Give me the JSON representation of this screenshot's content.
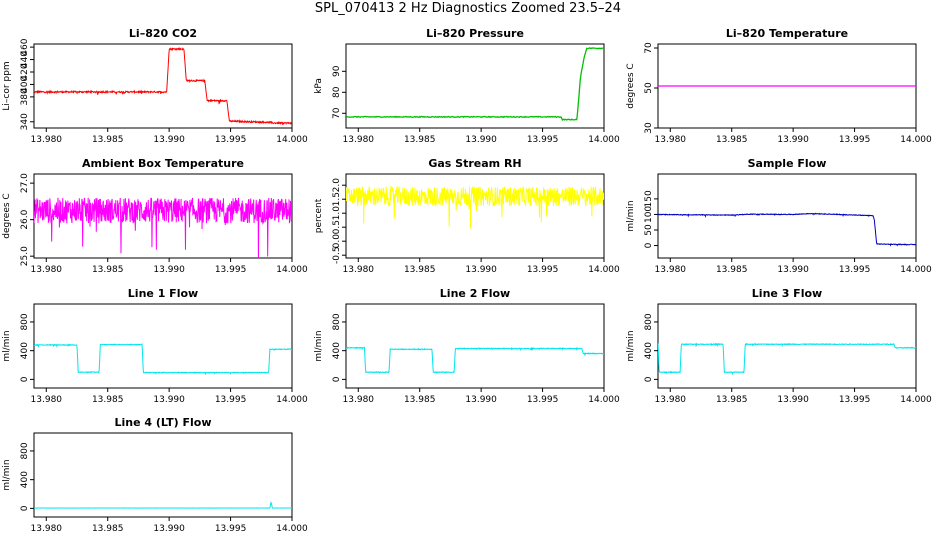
{
  "figure": {
    "title": "SPL_070413  2 Hz Diagnostics Zoomed 23.5–24"
  },
  "chart_data": [
    {
      "type": "line",
      "title": "Li–820 CO2",
      "ylabel": "Li–cor ppm",
      "xlim": [
        13.979,
        14.0
      ],
      "ylim": [
        330,
        465
      ],
      "x_ticks": [
        "13.980",
        "13.985",
        "13.990",
        "13.995",
        "14.000"
      ],
      "y_ticks": [
        "340",
        "380",
        "400",
        "420",
        "440",
        "460"
      ],
      "color": "#ff0000",
      "noise": 1.2,
      "series": [
        {
          "x": [
            13.979,
            13.9898,
            13.99,
            13.9912,
            13.9914,
            13.9929,
            13.9931,
            13.9947,
            13.9949,
            13.9983,
            13.9984,
            14.0
          ],
          "y": [
            388,
            388,
            457,
            457,
            406,
            406,
            374,
            374,
            341,
            339,
            338,
            338
          ]
        }
      ]
    },
    {
      "type": "line",
      "title": "Li–820 Pressure",
      "ylabel": "kPa",
      "xlim": [
        13.979,
        14.0
      ],
      "ylim": [
        63,
        103
      ],
      "x_ticks": [
        "13.980",
        "13.985",
        "13.990",
        "13.995",
        "14.000"
      ],
      "y_ticks": [
        "70",
        "80",
        "90"
      ],
      "color": "#00c000",
      "noise": 0.2,
      "series": [
        {
          "x": [
            13.979,
            13.9965,
            13.9966,
            13.9978,
            13.9979,
            13.9981,
            13.9984,
            13.9986,
            14.0
          ],
          "y": [
            68.3,
            68.3,
            67,
            67,
            74,
            88,
            97,
            101,
            101
          ]
        }
      ]
    },
    {
      "type": "line",
      "title": "Li–820 Temperature",
      "ylabel": "degrees C",
      "xlim": [
        13.979,
        14.0
      ],
      "ylim": [
        30,
        72
      ],
      "x_ticks": [
        "13.980",
        "13.985",
        "13.990",
        "13.995",
        "14.000"
      ],
      "y_ticks": [
        "30",
        "50",
        "70"
      ],
      "color": "#ff00ff",
      "noise": 0,
      "series": [
        {
          "x": [
            13.979,
            14.0
          ],
          "y": [
            51,
            51
          ]
        }
      ]
    },
    {
      "type": "line",
      "title": "Ambient Box Temperature",
      "ylabel": "degrees C",
      "xlim": [
        13.979,
        14.0
      ],
      "ylim": [
        24.95,
        27.25
      ],
      "x_ticks": [
        "13.980",
        "13.985",
        "13.990",
        "13.995",
        "14.000"
      ],
      "y_ticks": [
        "25.0",
        "26.0",
        "27.0"
      ],
      "color": "#ff00ff",
      "noise": 0.35,
      "series": [
        {
          "x": [
            13.979,
            14.0
          ],
          "y": [
            26.25,
            26.25
          ]
        }
      ]
    },
    {
      "type": "line",
      "title": "Gas Stream RH",
      "ylabel": "percent",
      "xlim": [
        13.979,
        14.0
      ],
      "ylim": [
        -0.6,
        2.4
      ],
      "x_ticks": [
        "13.980",
        "13.985",
        "13.990",
        "13.995",
        "14.000"
      ],
      "y_ticks": [
        "-0.5",
        "0.0",
        "0.5",
        "1.0",
        "1.5",
        "2.0"
      ],
      "color": "#ffff00",
      "noise": 0.35,
      "series": [
        {
          "x": [
            13.979,
            14.0
          ],
          "y": [
            1.6,
            1.6
          ]
        }
      ]
    },
    {
      "type": "line",
      "title": "Sample Flow",
      "ylabel": "ml/min",
      "xlim": [
        13.979,
        14.0
      ],
      "ylim": [
        -40,
        230
      ],
      "x_ticks": [
        "13.980",
        "13.985",
        "13.990",
        "13.995",
        "14.000"
      ],
      "y_ticks": [
        "0",
        "50",
        "100",
        "150"
      ],
      "color": "#0000c0",
      "noise": 1,
      "series": [
        {
          "x": [
            13.979,
            13.981,
            13.985,
            13.9865,
            13.99,
            13.9915,
            13.9965,
            13.9966,
            13.9968,
            14.0
          ],
          "y": [
            100,
            99,
            98,
            101,
            100,
            103,
            96,
            85,
            5,
            3
          ]
        }
      ]
    },
    {
      "type": "line",
      "title": "Line 1 Flow",
      "ylabel": "ml/min",
      "xlim": [
        13.979,
        14.0
      ],
      "ylim": [
        -120,
        1050
      ],
      "x_ticks": [
        "13.980",
        "13.985",
        "13.990",
        "13.995",
        "14.000"
      ],
      "y_ticks": [
        "0",
        "400",
        "800"
      ],
      "color": "#00e5ee",
      "noise": 5,
      "series": [
        {
          "x": [
            13.979,
            13.9825,
            13.9826,
            13.9843,
            13.9844,
            13.9878,
            13.9879,
            13.9981,
            13.9982,
            14.0
          ],
          "y": [
            480,
            480,
            100,
            100,
            485,
            485,
            95,
            95,
            420,
            420
          ]
        }
      ]
    },
    {
      "type": "line",
      "title": "Line 2 Flow",
      "ylabel": "ml/min",
      "xlim": [
        13.979,
        14.0
      ],
      "ylim": [
        -120,
        1050
      ],
      "x_ticks": [
        "13.980",
        "13.985",
        "13.990",
        "13.995",
        "14.000"
      ],
      "y_ticks": [
        "0",
        "400",
        "800"
      ],
      "color": "#00e5ee",
      "noise": 5,
      "series": [
        {
          "x": [
            13.979,
            13.9805,
            13.9806,
            13.9825,
            13.9826,
            13.986,
            13.9861,
            13.9878,
            13.9879,
            13.9982,
            13.9983,
            14.0
          ],
          "y": [
            440,
            440,
            100,
            100,
            420,
            420,
            100,
            100,
            430,
            430,
            360,
            360
          ]
        }
      ]
    },
    {
      "type": "line",
      "title": "Line 3 Flow",
      "ylabel": "ml/min",
      "xlim": [
        13.979,
        14.0
      ],
      "ylim": [
        -120,
        1050
      ],
      "x_ticks": [
        "13.980",
        "13.985",
        "13.990",
        "13.995",
        "14.000"
      ],
      "y_ticks": [
        "0",
        "400",
        "800"
      ],
      "color": "#00e5ee",
      "noise": 5,
      "series": [
        {
          "x": [
            13.979,
            13.9791,
            13.9808,
            13.9809,
            13.9843,
            13.9844,
            13.986,
            13.9861,
            13.9982,
            13.9983,
            14.0
          ],
          "y": [
            500,
            100,
            100,
            490,
            490,
            100,
            100,
            490,
            490,
            440,
            440
          ]
        }
      ]
    },
    {
      "type": "line",
      "title": "Line 4 (LT) Flow",
      "ylabel": "ml/min",
      "xlim": [
        13.979,
        14.0
      ],
      "ylim": [
        -120,
        1050
      ],
      "x_ticks": [
        "13.980",
        "13.985",
        "13.990",
        "13.995",
        "14.000"
      ],
      "y_ticks": [
        "0",
        "400",
        "800"
      ],
      "color": "#00e5ee",
      "noise": 1,
      "series": [
        {
          "x": [
            13.979,
            13.9982,
            13.9983,
            13.9984,
            14.0
          ],
          "y": [
            5,
            5,
            90,
            5,
            5
          ]
        }
      ]
    }
  ]
}
